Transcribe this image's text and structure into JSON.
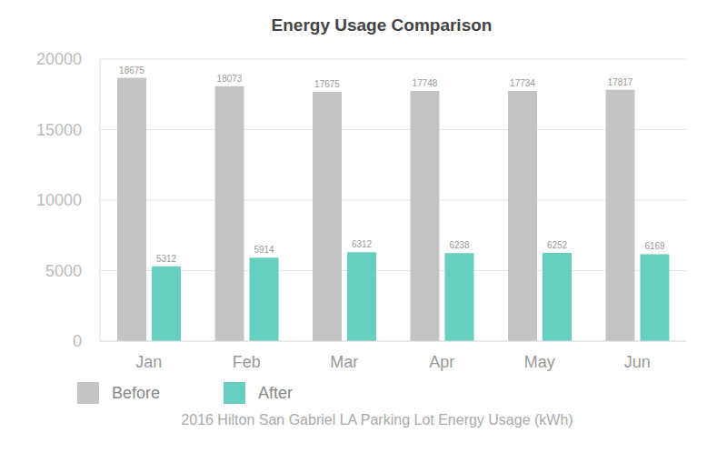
{
  "chart_data": {
    "type": "bar",
    "title": "Energy Usage Comparison",
    "x_label": "2016 Hilton San Gabriel LA Parking Lot Energy Usage (kWh)",
    "categories": [
      "Jan",
      "Feb",
      "Mar",
      "Apr",
      "May",
      "Jun"
    ],
    "series": [
      {
        "name": "Before",
        "color": "#c4c4c4",
        "values": [
          18675,
          18073,
          17675,
          17748,
          17734,
          17817
        ]
      },
      {
        "name": "After",
        "color": "#66cfc0",
        "values": [
          5312,
          5914,
          6312,
          6238,
          6252,
          6169
        ]
      }
    ],
    "ylim": [
      0,
      20000
    ],
    "yticks": [
      0,
      5000,
      10000,
      15000,
      20000
    ],
    "grid": true,
    "data_labels": true,
    "legend": "bottom left"
  }
}
